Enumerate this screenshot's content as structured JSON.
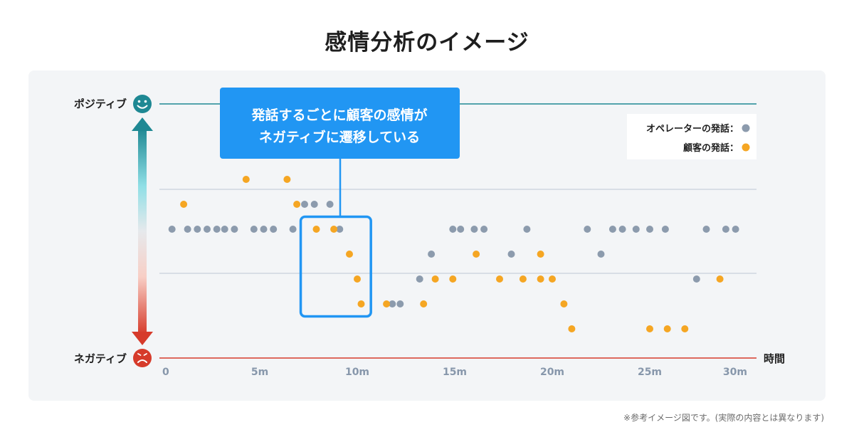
{
  "title": "感情分析のイメージ",
  "footnote": "※参考イメージ図です。(実際の内容とは異なります)",
  "colors": {
    "operator": "#8c9bad",
    "customer": "#f5a623",
    "positive_line": "#1e8893",
    "negative_line": "#d63b2b",
    "callout": "#2196f3",
    "gridline": "#c7d0dc"
  },
  "chart_data": {
    "type": "scatter",
    "title": "感情分析のイメージ",
    "xlabel": "時間",
    "ylabel_top": "ポジティブ",
    "ylabel_bottom": "ネガティブ",
    "xlim": [
      0,
      30
    ],
    "ylim": [
      0,
      10
    ],
    "x_ticks": [
      0,
      5,
      10,
      15,
      20,
      25,
      30
    ],
    "x_tick_labels": [
      "0",
      "5m",
      "10m",
      "15m",
      "20m",
      "25m",
      "30m"
    ],
    "legend": {
      "placement": "top-right",
      "entries": [
        "オペレーターの発話：",
        "顧客の発話："
      ]
    },
    "callout": "発話するごとに顧客の感情が\nネガティブに遷移している",
    "highlight_range": {
      "x": [
        7.1,
        10.7
      ],
      "y": [
        1.5,
        5.5
      ]
    },
    "series": [
      {
        "name": "オペレーターの発話：",
        "points": [
          [
            0.5,
            5
          ],
          [
            1.3,
            5
          ],
          [
            1.8,
            5
          ],
          [
            2.3,
            5
          ],
          [
            2.8,
            5
          ],
          [
            3.2,
            5
          ],
          [
            3.7,
            5
          ],
          [
            4.7,
            5
          ],
          [
            5.2,
            5
          ],
          [
            5.7,
            5
          ],
          [
            6.7,
            5
          ],
          [
            7.3,
            6
          ],
          [
            7.8,
            6
          ],
          [
            8.6,
            6
          ],
          [
            9.1,
            5
          ],
          [
            11.8,
            2
          ],
          [
            12.2,
            2
          ],
          [
            13.2,
            3
          ],
          [
            13.8,
            4
          ],
          [
            14.9,
            5
          ],
          [
            15.3,
            5
          ],
          [
            16.0,
            5
          ],
          [
            16.5,
            5
          ],
          [
            17.9,
            4
          ],
          [
            18.7,
            5
          ],
          [
            21.8,
            5
          ],
          [
            22.5,
            4
          ],
          [
            23.1,
            5
          ],
          [
            23.6,
            5
          ],
          [
            24.3,
            5
          ],
          [
            25.0,
            5
          ],
          [
            25.8,
            5
          ],
          [
            27.4,
            3
          ],
          [
            27.9,
            5
          ],
          [
            28.9,
            5
          ],
          [
            29.4,
            5
          ]
        ]
      },
      {
        "name": "顧客の発話：",
        "points": [
          [
            1.1,
            6
          ],
          [
            4.3,
            7
          ],
          [
            6.4,
            7
          ],
          [
            6.9,
            6
          ],
          [
            7.9,
            5
          ],
          [
            8.8,
            5
          ],
          [
            9.6,
            4
          ],
          [
            10.0,
            3
          ],
          [
            10.2,
            2
          ],
          [
            11.5,
            2
          ],
          [
            13.4,
            2
          ],
          [
            14.0,
            3
          ],
          [
            14.9,
            3
          ],
          [
            16.1,
            4
          ],
          [
            17.3,
            3
          ],
          [
            18.5,
            3
          ],
          [
            19.4,
            4
          ],
          [
            19.4,
            3
          ],
          [
            20.0,
            3
          ],
          [
            20.6,
            2
          ],
          [
            21.0,
            1
          ],
          [
            25.0,
            1
          ],
          [
            25.9,
            1
          ],
          [
            26.8,
            1
          ],
          [
            28.6,
            3
          ]
        ]
      }
    ]
  }
}
